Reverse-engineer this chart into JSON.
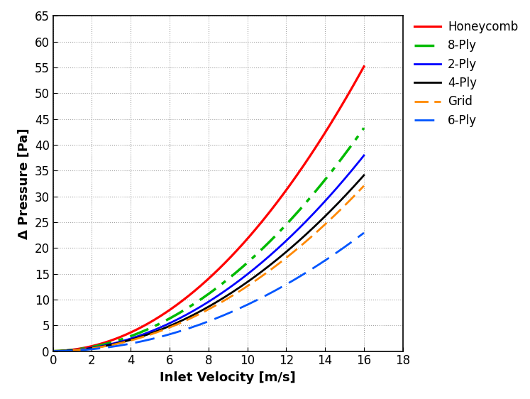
{
  "xlabel": "Inlet Velocity [m/s]",
  "ylabel": "Δ Pressure [Pa]",
  "xlim": [
    0,
    18
  ],
  "ylim": [
    0,
    65
  ],
  "xticks": [
    0,
    2,
    4,
    6,
    8,
    10,
    12,
    14,
    16,
    18
  ],
  "yticks": [
    0,
    5,
    10,
    15,
    20,
    25,
    30,
    35,
    40,
    45,
    50,
    55,
    60,
    65
  ],
  "series": [
    {
      "label": "Honeycomb",
      "color": "#ff0000",
      "linestyle": "solid",
      "linewidth": 2.3,
      "a": 0.212,
      "b": 0.058
    },
    {
      "label": "8-Ply",
      "color": "#00bb00",
      "linestyle": "dashdot",
      "linewidth": 2.5,
      "a": 0.165,
      "b": 0.065
    },
    {
      "label": "2-Ply",
      "color": "#0000ff",
      "linestyle": "solid",
      "linewidth": 2.0,
      "a": 0.147,
      "b": 0.02
    },
    {
      "label": "4-Ply",
      "color": "#000000",
      "linestyle": "solid",
      "linewidth": 2.0,
      "a": 0.132,
      "b": 0.02
    },
    {
      "label": "Grid",
      "color": "#ff8800",
      "linestyle": "dashed",
      "linewidth": 2.0,
      "a": 0.124,
      "b": 0.02
    },
    {
      "label": "6-Ply",
      "color": "#0055ff",
      "linestyle": "dashed",
      "linewidth": 2.0,
      "a": 0.089,
      "b": 0.01
    }
  ],
  "background_color": "#ffffff",
  "grid_color": "#999999",
  "font_color": "#000000",
  "label_fontsize": 13,
  "tick_fontsize": 12,
  "legend_fontsize": 12
}
